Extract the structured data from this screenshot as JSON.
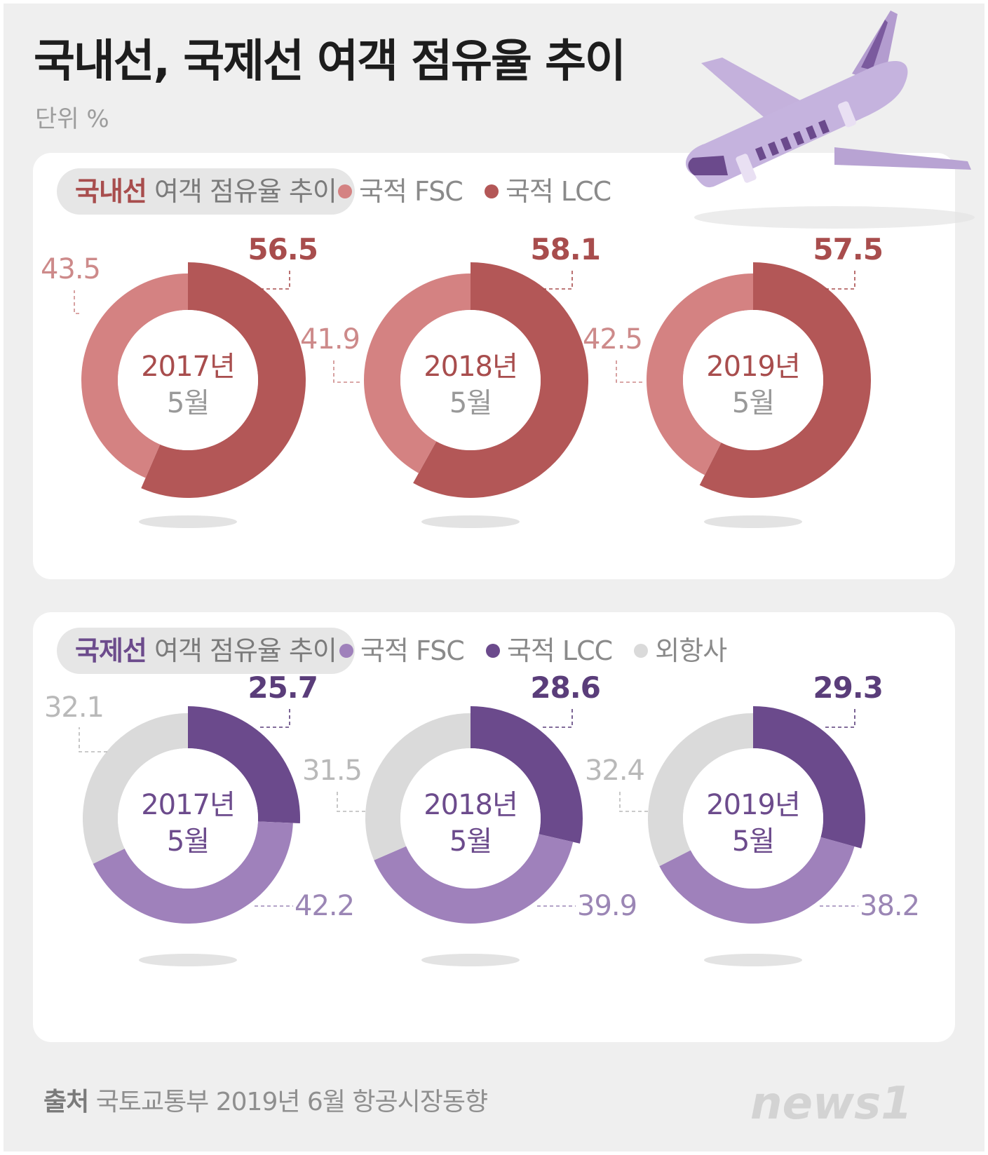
{
  "title": "국내선, 국제선 여객 점유율 추이",
  "unit": "단위  %",
  "source_label": "출처",
  "source": "국토교통부 2019년 6월 항공시장동향",
  "logo_text": "news1",
  "colors": {
    "domestic_fsc": "#d48282",
    "domestic_lcc": "#b35757",
    "intl_fsc": "#9f81bb",
    "intl_lcc": "#6b4a8c",
    "intl_foreign": "#dadada",
    "domestic_text": "#a84d4d",
    "domestic_light_text": "#cd8a8a",
    "intl_text": "#5a3d7a",
    "intl_light_text": "#9b86b5",
    "foreign_text": "#b9b9b9",
    "center_text_domestic": "#a84d4d",
    "center_text_intl": "#6c4b8c",
    "month_text": "#999999"
  },
  "domestic": {
    "label_strong": "국내선",
    "label_rest": " 여객 점유율 추이",
    "legend": [
      {
        "label": "국적 FSC",
        "color": "#d48282"
      },
      {
        "label": "국적 LCC",
        "color": "#b35757"
      }
    ]
  },
  "international": {
    "label_strong": "국제선",
    "label_rest": " 여객 점유율 추이",
    "legend": [
      {
        "label": "국적 FSC",
        "color": "#9f81bb"
      },
      {
        "label": "국적 LCC",
        "color": "#6b4a8c"
      },
      {
        "label": "외항사",
        "color": "#dadada"
      }
    ]
  },
  "chart_data": [
    {
      "type": "pie",
      "group": "domestic",
      "title": "2017년",
      "subtitle": "5월",
      "slices": [
        {
          "name": "국적 LCC",
          "value": 56.5,
          "label": "56.5"
        },
        {
          "name": "국적 FSC",
          "value": 43.5,
          "label": "43.5"
        }
      ]
    },
    {
      "type": "pie",
      "group": "domestic",
      "title": "2018년",
      "subtitle": "5월",
      "slices": [
        {
          "name": "국적 LCC",
          "value": 58.1,
          "label": "58.1"
        },
        {
          "name": "국적 FSC",
          "value": 41.9,
          "label": "41.9"
        }
      ]
    },
    {
      "type": "pie",
      "group": "domestic",
      "title": "2019년",
      "subtitle": "5월",
      "slices": [
        {
          "name": "국적 LCC",
          "value": 57.5,
          "label": "57.5"
        },
        {
          "name": "국적 FSC",
          "value": 42.5,
          "label": "42.5"
        }
      ]
    },
    {
      "type": "pie",
      "group": "international",
      "title": "2017년",
      "subtitle": "5월",
      "slices": [
        {
          "name": "국적 LCC",
          "value": 25.7,
          "label": "25.7"
        },
        {
          "name": "국적 FSC",
          "value": 42.2,
          "label": "42.2"
        },
        {
          "name": "외항사",
          "value": 32.1,
          "label": "32.1"
        }
      ]
    },
    {
      "type": "pie",
      "group": "international",
      "title": "2018년",
      "subtitle": "5월",
      "slices": [
        {
          "name": "국적 LCC",
          "value": 28.6,
          "label": "28.6"
        },
        {
          "name": "국적 FSC",
          "value": 39.9,
          "label": "39.9"
        },
        {
          "name": "외항사",
          "value": 31.5,
          "label": "31.5"
        }
      ]
    },
    {
      "type": "pie",
      "group": "international",
      "title": "2019년",
      "subtitle": "5월",
      "slices": [
        {
          "name": "국적 LCC",
          "value": 29.3,
          "label": "29.3"
        },
        {
          "name": "국적 FSC",
          "value": 38.2,
          "label": "38.2"
        },
        {
          "name": "외항사",
          "value": 32.4,
          "label": "32.4"
        }
      ]
    }
  ]
}
